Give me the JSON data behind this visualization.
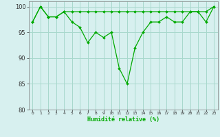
{
  "xlabel": "Humidité relative (%)",
  "ylim": [
    80,
    101
  ],
  "xlim": [
    -0.5,
    23.5
  ],
  "yticks": [
    80,
    85,
    90,
    95,
    100
  ],
  "background_color": "#d7f0ef",
  "grid_color": "#a8d8cc",
  "line_color": "#00aa00",
  "series1": [
    97,
    100,
    98,
    98,
    99,
    97,
    96,
    93,
    95,
    94,
    95,
    88,
    85,
    92,
    95,
    97,
    97,
    98,
    97,
    97,
    99,
    99,
    97,
    100
  ],
  "series2": [
    97,
    100,
    98,
    98,
    99,
    99,
    99,
    99,
    99,
    99,
    99,
    99,
    99,
    99,
    99,
    99,
    99,
    99,
    99,
    99,
    99,
    99,
    99,
    100
  ],
  "x": [
    0,
    1,
    2,
    3,
    4,
    5,
    6,
    7,
    8,
    9,
    10,
    11,
    12,
    13,
    14,
    15,
    16,
    17,
    18,
    19,
    20,
    21,
    22,
    23
  ]
}
